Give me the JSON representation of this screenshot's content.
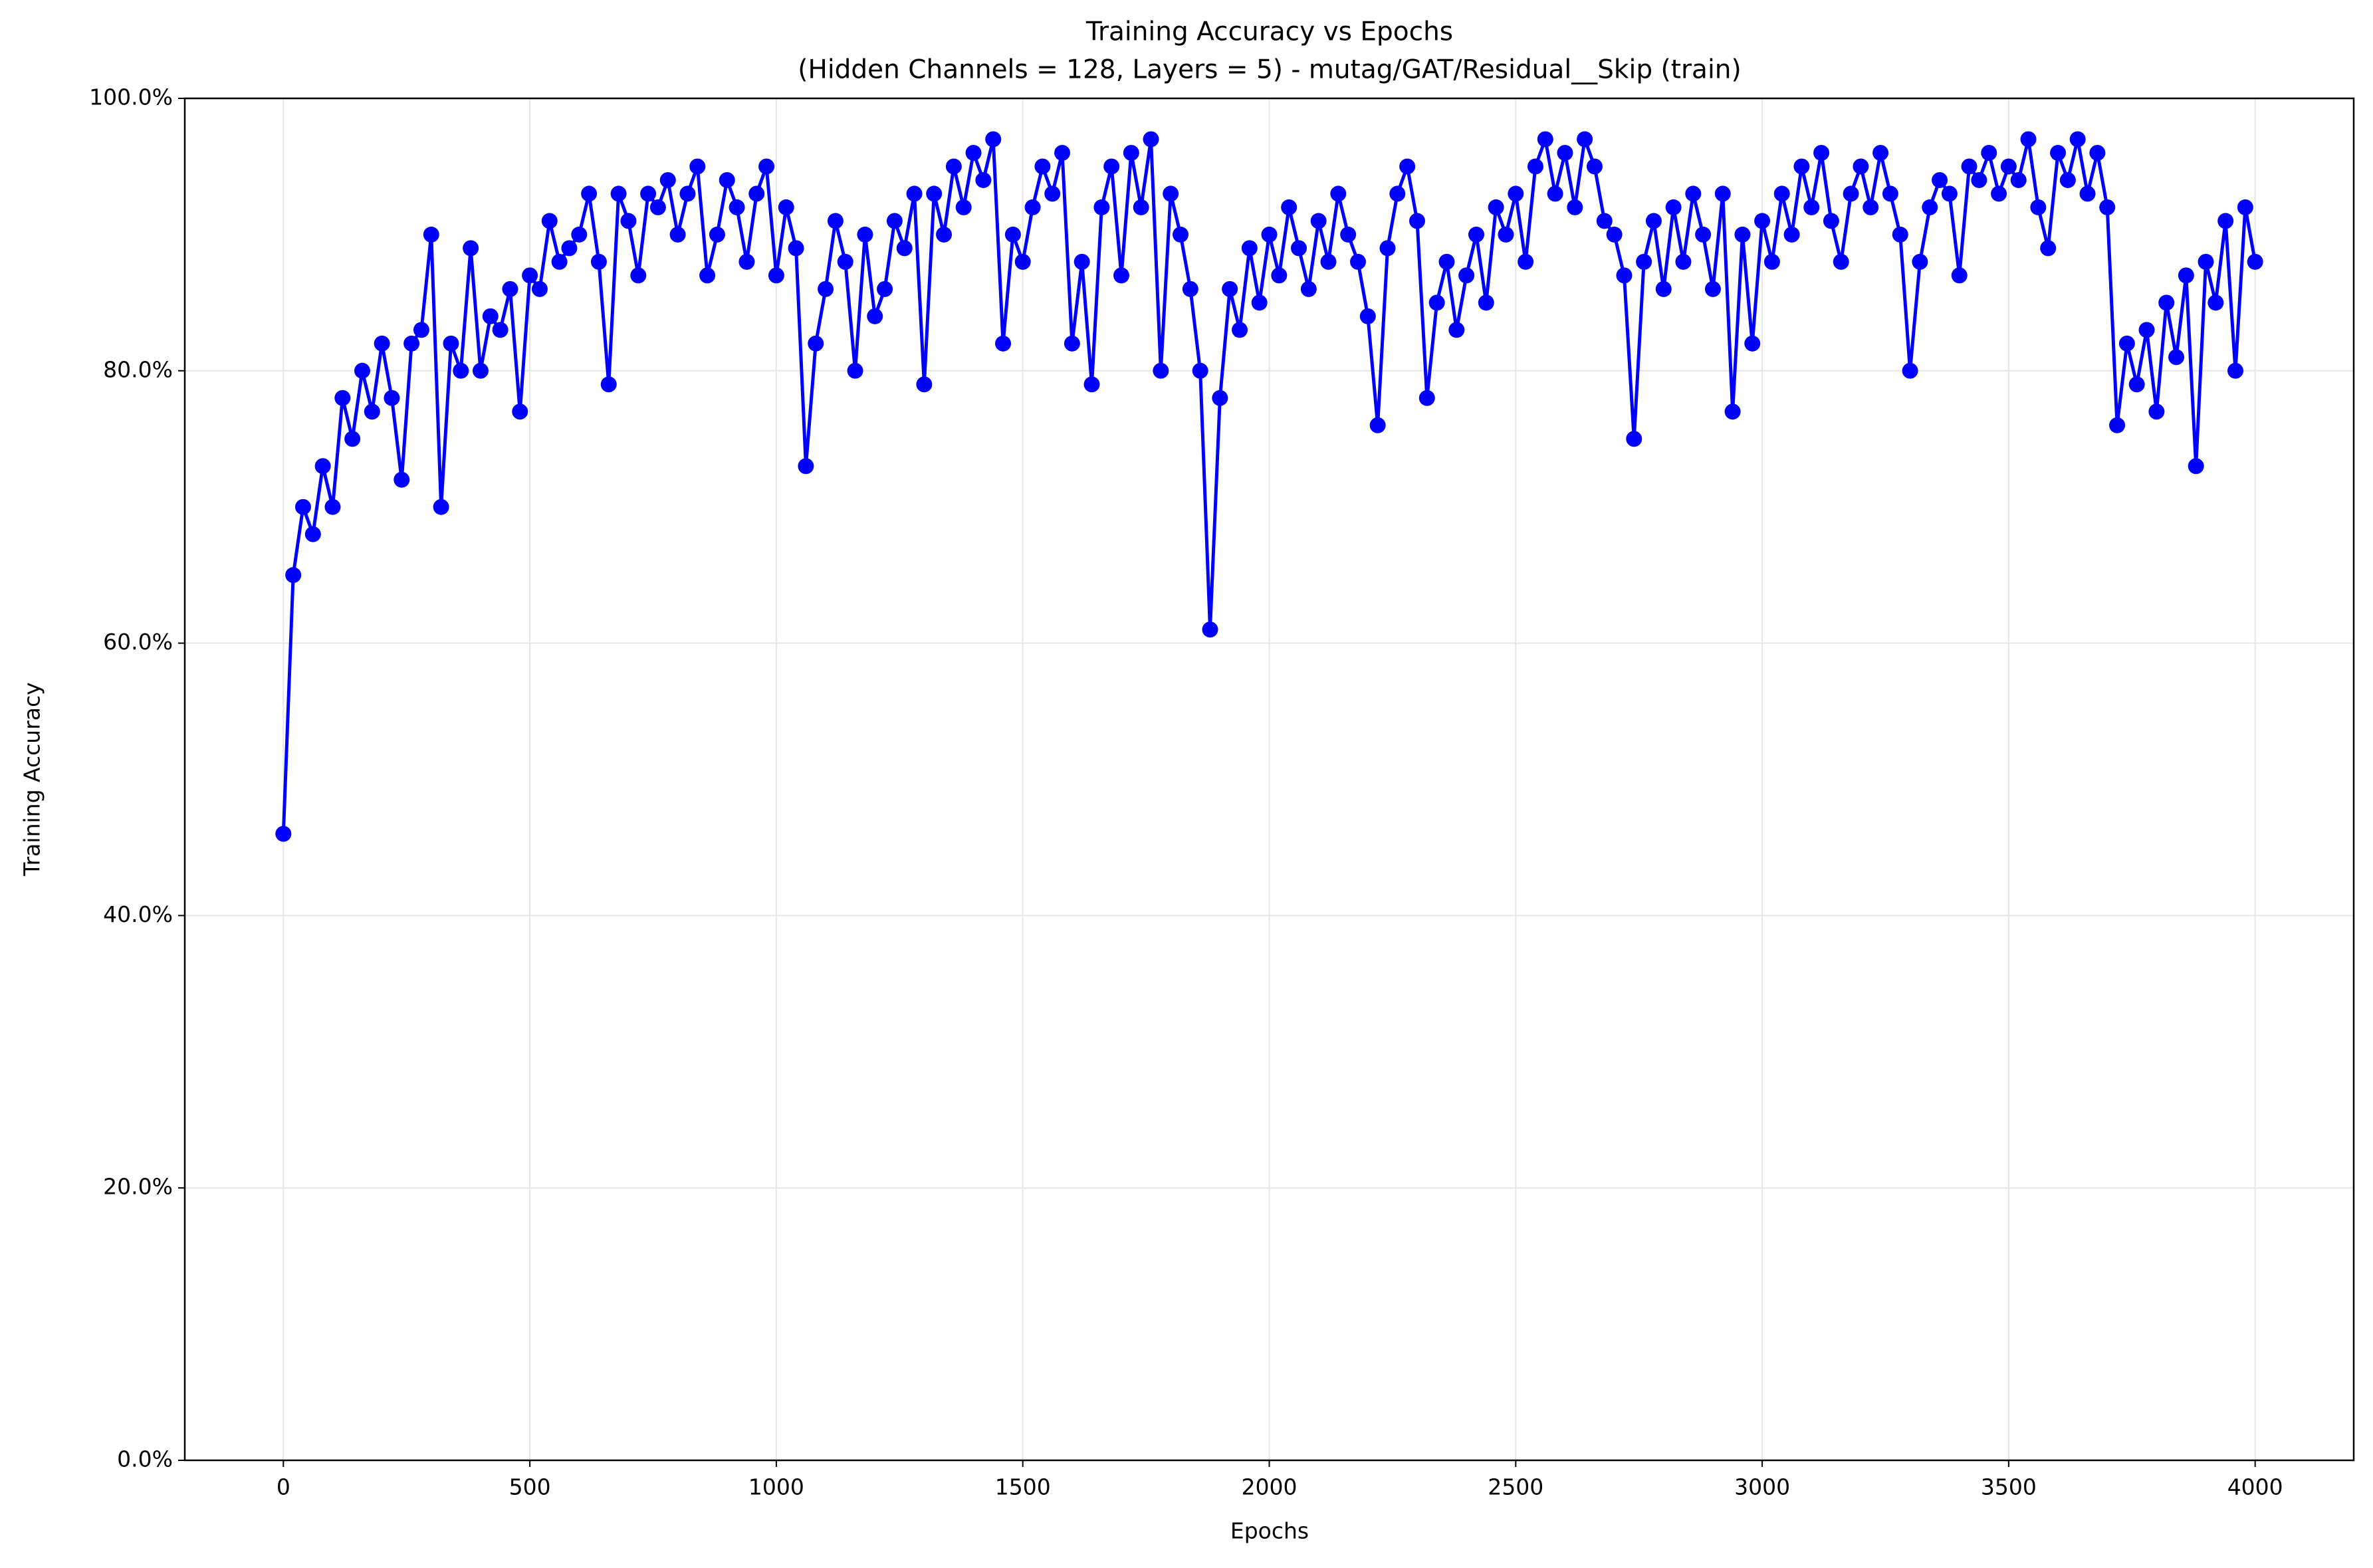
{
  "chart_data": {
    "type": "line",
    "title": "Training Accuracy vs Epochs",
    "subtitle": "(Hidden Channels = 128, Layers = 5) - mutag/GAT/Residual__Skip (train)",
    "x_label": "Epochs",
    "y_label": "Training Accuracy",
    "xlim": [
      -200,
      4200
    ],
    "xticks": [
      0,
      500,
      1000,
      1500,
      2000,
      2500,
      3000,
      3500,
      4000
    ],
    "ylim": [
      0,
      100
    ],
    "yticks": [
      {
        "value": 0,
        "label": "0.0%"
      },
      {
        "value": 20,
        "label": "20.0%"
      },
      {
        "value": 40,
        "label": "40.0%"
      },
      {
        "value": 60,
        "label": "60.0%"
      },
      {
        "value": 80,
        "label": "80.0%"
      },
      {
        "value": 100,
        "label": "100.0%"
      }
    ],
    "grid": true,
    "color": "#0000ff",
    "x": [
      0,
      20,
      40,
      60,
      80,
      100,
      120,
      140,
      160,
      180,
      200,
      220,
      240,
      260,
      280,
      300,
      320,
      340,
      360,
      380,
      400,
      420,
      440,
      460,
      480,
      500,
      520,
      540,
      560,
      580,
      600,
      620,
      640,
      660,
      680,
      700,
      720,
      740,
      760,
      780,
      800,
      820,
      840,
      860,
      880,
      900,
      920,
      940,
      960,
      980,
      1000,
      1020,
      1040,
      1060,
      1080,
      1100,
      1120,
      1140,
      1160,
      1180,
      1200,
      1220,
      1240,
      1260,
      1280,
      1300,
      1320,
      1340,
      1360,
      1380,
      1400,
      1420,
      1440,
      1460,
      1480,
      1500,
      1520,
      1540,
      1560,
      1580,
      1600,
      1620,
      1640,
      1660,
      1680,
      1700,
      1720,
      1740,
      1760,
      1780,
      1800,
      1820,
      1840,
      1860,
      1880,
      1900,
      1920,
      1940,
      1960,
      1980,
      2000,
      2020,
      2040,
      2060,
      2080,
      2100,
      2120,
      2140,
      2160,
      2180,
      2200,
      2220,
      2240,
      2260,
      2280,
      2300,
      2320,
      2340,
      2360,
      2380,
      2400,
      2420,
      2440,
      2460,
      2480,
      2500,
      2520,
      2540,
      2560,
      2580,
      2600,
      2620,
      2640,
      2660,
      2680,
      2700,
      2720,
      2740,
      2760,
      2780,
      2800,
      2820,
      2840,
      2860,
      2880,
      2900,
      2920,
      2940,
      2960,
      2980,
      3000,
      3020,
      3040,
      3060,
      3080,
      3100,
      3120,
      3140,
      3160,
      3180,
      3200,
      3220,
      3240,
      3260,
      3280,
      3300,
      3320,
      3340,
      3360,
      3380,
      3400,
      3420,
      3440,
      3460,
      3480,
      3500,
      3520,
      3540,
      3560,
      3580,
      3600,
      3620,
      3640,
      3660,
      3680,
      3700,
      3720,
      3740,
      3760,
      3780,
      3800,
      3820,
      3840,
      3860,
      3880,
      3900,
      3920,
      3940,
      3960,
      3980,
      4000
    ],
    "values": [
      46,
      65,
      70,
      68,
      73,
      70,
      78,
      75,
      80,
      77,
      82,
      78,
      72,
      82,
      83,
      90,
      70,
      82,
      80,
      89,
      80,
      84,
      83,
      86,
      77,
      87,
      86,
      91,
      88,
      89,
      90,
      93,
      88,
      79,
      93,
      91,
      87,
      93,
      92,
      94,
      90,
      93,
      95,
      87,
      90,
      94,
      92,
      88,
      93,
      95,
      87,
      92,
      89,
      73,
      82,
      86,
      91,
      88,
      80,
      90,
      84,
      86,
      91,
      89,
      93,
      79,
      93,
      90,
      95,
      92,
      96,
      94,
      97,
      82,
      90,
      88,
      92,
      95,
      93,
      96,
      82,
      88,
      79,
      92,
      95,
      87,
      96,
      92,
      97,
      80,
      93,
      90,
      86,
      80,
      61,
      78,
      86,
      83,
      89,
      85,
      90,
      87,
      92,
      89,
      86,
      91,
      88,
      93,
      90,
      88,
      84,
      76,
      89,
      93,
      95,
      91,
      78,
      85,
      88,
      83,
      87,
      90,
      85,
      92,
      90,
      93,
      88,
      95,
      97,
      93,
      96,
      92,
      97,
      95,
      91,
      90,
      87,
      75,
      88,
      91,
      86,
      92,
      88,
      93,
      90,
      86,
      93,
      77,
      90,
      82,
      91,
      88,
      93,
      90,
      95,
      92,
      96,
      91,
      88,
      93,
      95,
      92,
      96,
      93,
      90,
      80,
      88,
      92,
      94,
      93,
      87,
      95,
      94,
      96,
      93,
      95,
      94,
      97,
      92,
      89,
      96,
      94,
      97,
      93,
      96,
      92,
      76,
      82,
      79,
      83,
      77,
      85,
      81,
      87,
      73,
      88,
      85,
      91,
      80,
      92,
      88
    ]
  }
}
